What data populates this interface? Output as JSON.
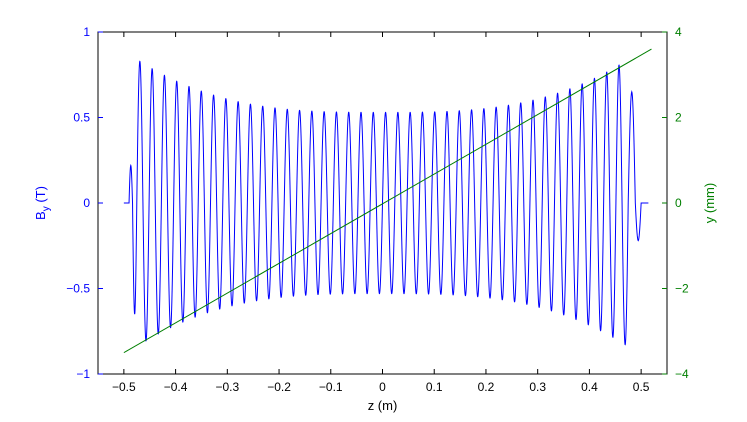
{
  "chart_data": {
    "type": "line",
    "xlabel": "z (m)",
    "ylabel_left": {
      "main": "B",
      "sub": "y",
      "unit": " (T)"
    },
    "ylabel_right": "y (mm)",
    "xlim": [
      -0.55,
      0.55
    ],
    "ylim_left": [
      -1,
      1
    ],
    "ylim_right": [
      -4,
      4
    ],
    "x_ticks": [
      -0.5,
      -0.4,
      -0.3,
      -0.2,
      -0.1,
      0,
      0.1,
      0.2,
      0.3,
      0.4,
      0.5
    ],
    "x_tick_labels": [
      "−0.5",
      "−0.4",
      "−0.3",
      "−0.2",
      "−0.1",
      "0",
      "0.1",
      "0.2",
      "0.3",
      "0.4",
      "0.5"
    ],
    "left_ticks": [
      -1,
      -0.5,
      0,
      0.5,
      1
    ],
    "left_tick_labels": [
      "−1",
      "−0.5",
      "0",
      "0.5",
      "1"
    ],
    "right_ticks": [
      -4,
      -2,
      0,
      2,
      4
    ],
    "right_tick_labels": [
      "−4",
      "−2",
      "0",
      "2",
      "4"
    ],
    "grid": false,
    "colors": {
      "left_axis": "#0000ff",
      "right_axis": "#007f00",
      "frame": "#000000"
    },
    "series": [
      {
        "axis": "left",
        "color": "#0000ff",
        "shape": "undulator field oscillation",
        "z_start": -0.5,
        "z_end": 0.514,
        "flat_start": [
          -0.5,
          -0.49
        ],
        "flat_end": [
          0.5,
          0.514
        ],
        "core_z_range": [
          -0.475,
          0.475
        ],
        "periods_in_core": 40,
        "center_amplitude": 0.53,
        "edge_amplitude": 0.84,
        "first_entry_peak": 0.22,
        "first_entry_trough": -0.65,
        "exit_peak": 0.65,
        "exit_trough": -0.22
      },
      {
        "axis": "right",
        "color": "#007f00",
        "points": [
          [
            -0.5,
            -3.5
          ],
          [
            0.52,
            3.6
          ]
        ]
      }
    ]
  }
}
